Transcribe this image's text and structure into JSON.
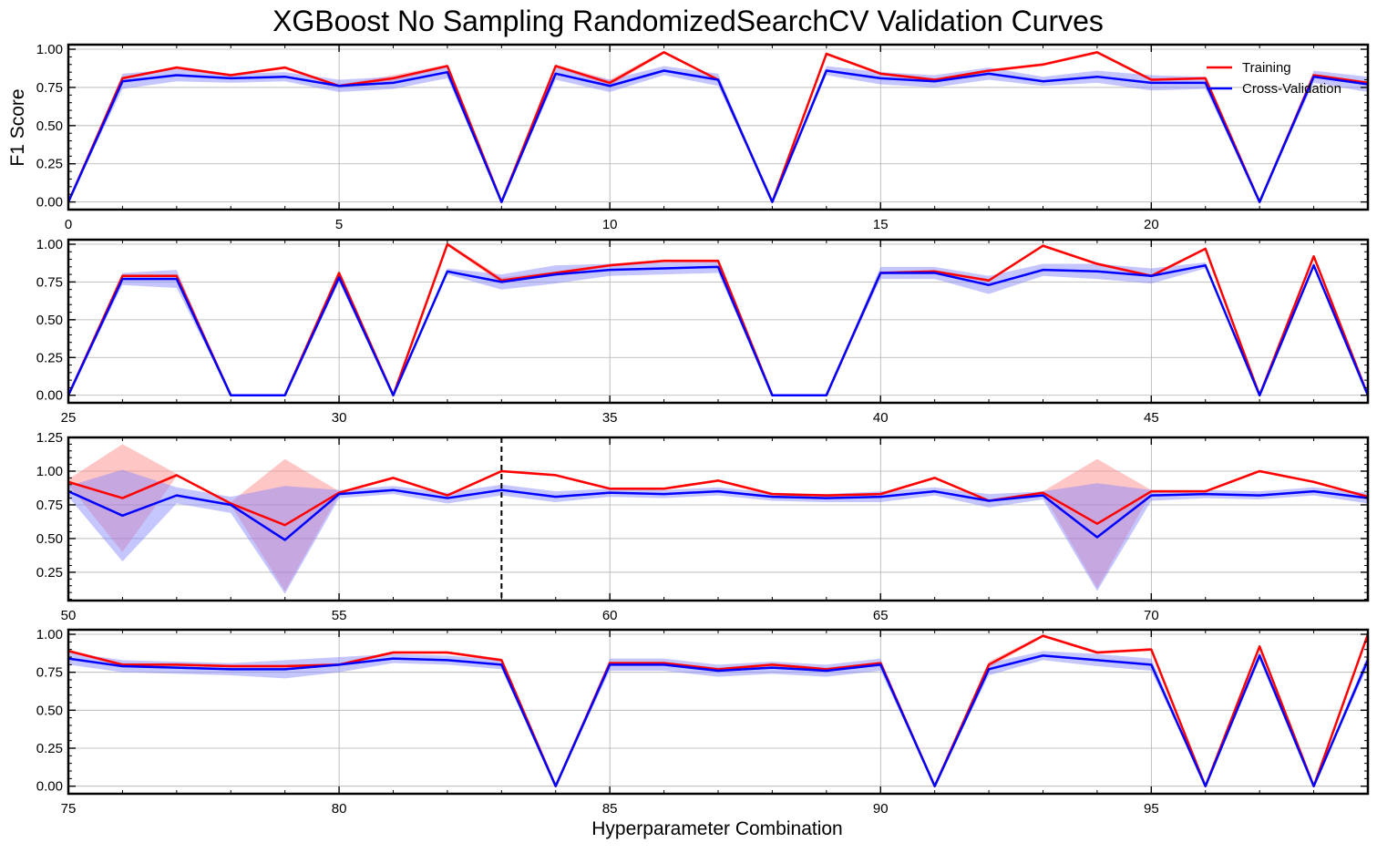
{
  "chart_data": {
    "type": "line",
    "title": "XGBoost No Sampling RandomizedSearchCV Validation Curves",
    "ylabel": "F1 Score",
    "xlabel": "Hyperparameter Combination",
    "grid": true,
    "legend": {
      "placement": "top-right",
      "entries": [
        "Training",
        "Cross-Validation"
      ]
    },
    "colors": {
      "training": "#ff0000",
      "cross_validation": "#0000ff",
      "training_band": "#ff8080",
      "cv_band": "#8080ff"
    },
    "best_marker": {
      "x": 58,
      "style": "dashed",
      "color": "#000000"
    },
    "panels": [
      {
        "xlim": [
          0,
          24
        ],
        "ylim": [
          -0.05,
          1.03
        ],
        "xticks": [
          "0",
          "5",
          "10",
          "15",
          "20"
        ],
        "xtick_values": [
          0,
          5,
          10,
          15,
          20
        ],
        "yticks": [
          "0.00",
          "0.25",
          "0.50",
          "0.75",
          "1.00"
        ],
        "ytick_values": [
          0,
          0.25,
          0.5,
          0.75,
          1.0
        ]
      },
      {
        "xlim": [
          25,
          49
        ],
        "ylim": [
          -0.05,
          1.03
        ],
        "xticks": [
          "25",
          "30",
          "35",
          "40",
          "45"
        ],
        "xtick_values": [
          25,
          30,
          35,
          40,
          45
        ],
        "yticks": [
          "0.00",
          "0.25",
          "0.50",
          "0.75",
          "1.00"
        ],
        "ytick_values": [
          0,
          0.25,
          0.5,
          0.75,
          1.0
        ]
      },
      {
        "xlim": [
          50,
          74
        ],
        "ylim": [
          0.04,
          1.25
        ],
        "xticks": [
          "50",
          "55",
          "60",
          "65",
          "70"
        ],
        "xtick_values": [
          50,
          55,
          60,
          65,
          70
        ],
        "yticks": [
          "0.25",
          "0.50",
          "0.75",
          "1.00",
          "1.25"
        ],
        "ytick_values": [
          0.25,
          0.5,
          0.75,
          1.0,
          1.25
        ]
      },
      {
        "xlim": [
          75,
          99
        ],
        "ylim": [
          -0.05,
          1.03
        ],
        "xticks": [
          "75",
          "80",
          "85",
          "90",
          "95"
        ],
        "xtick_values": [
          75,
          80,
          85,
          90,
          95
        ],
        "yticks": [
          "0.00",
          "0.25",
          "0.50",
          "0.75",
          "1.00"
        ],
        "ytick_values": [
          0,
          0.25,
          0.5,
          0.75,
          1.0
        ]
      }
    ],
    "series": [
      {
        "name": "Training",
        "values": [
          0.0,
          0.81,
          0.88,
          0.83,
          0.88,
          0.76,
          0.81,
          0.89,
          0.0,
          0.89,
          0.78,
          0.98,
          0.8,
          0.0,
          0.97,
          0.84,
          0.8,
          0.86,
          0.9,
          0.98,
          0.8,
          0.81,
          0.0,
          0.83,
          0.78,
          0.0,
          0.79,
          0.79,
          0.0,
          0.0,
          0.81,
          0.0,
          1.0,
          0.76,
          0.81,
          0.86,
          0.89,
          0.89,
          0.0,
          0.0,
          0.81,
          0.82,
          0.76,
          0.99,
          0.87,
          0.79,
          0.97,
          0.0,
          0.92,
          0.0,
          0.92,
          0.8,
          0.97,
          0.76,
          0.6,
          0.84,
          0.95,
          0.82,
          1.0,
          0.97,
          0.87,
          0.87,
          0.93,
          0.83,
          0.82,
          0.83,
          0.95,
          0.78,
          0.84,
          0.61,
          0.85,
          0.85,
          1.0,
          0.92,
          0.81,
          0.89,
          0.8,
          0.8,
          0.79,
          0.79,
          0.8,
          0.88,
          0.88,
          0.83,
          0.0,
          0.81,
          0.81,
          0.77,
          0.8,
          0.77,
          0.81,
          0.0,
          0.8,
          0.99,
          0.88,
          0.9,
          0.0,
          0.92,
          0.0,
          1.0
        ],
        "spread": [
          0,
          0.01,
          0.01,
          0.01,
          0.01,
          0.01,
          0.02,
          0.01,
          0,
          0.01,
          0.02,
          0.01,
          0.01,
          0,
          0.01,
          0.01,
          0.01,
          0.01,
          0.01,
          0.01,
          0.01,
          0.01,
          0,
          0.01,
          0.01,
          0,
          0.01,
          0.01,
          0,
          0,
          0.01,
          0,
          0.01,
          0.02,
          0.01,
          0.01,
          0.01,
          0.01,
          0,
          0,
          0.01,
          0.01,
          0.01,
          0.01,
          0.01,
          0.01,
          0.01,
          0,
          0.01,
          0,
          0.02,
          0.4,
          0.01,
          0.01,
          0.49,
          0.01,
          0.01,
          0.01,
          0.01,
          0.01,
          0.01,
          0.01,
          0.01,
          0.01,
          0.01,
          0.01,
          0.01,
          0.01,
          0.01,
          0.48,
          0.01,
          0.01,
          0.01,
          0.01,
          0.01,
          0.01,
          0.01,
          0.01,
          0.01,
          0.01,
          0.01,
          0.01,
          0.01,
          0.01,
          0,
          0.01,
          0.01,
          0.01,
          0.01,
          0.01,
          0.01,
          0,
          0.02,
          0.01,
          0.01,
          0.01,
          0,
          0.01,
          0,
          0.01
        ]
      },
      {
        "name": "Cross-Validation",
        "values": [
          0.0,
          0.79,
          0.83,
          0.81,
          0.82,
          0.76,
          0.78,
          0.85,
          0.0,
          0.84,
          0.76,
          0.86,
          0.8,
          0.0,
          0.86,
          0.81,
          0.79,
          0.84,
          0.79,
          0.82,
          0.78,
          0.78,
          0.0,
          0.82,
          0.77,
          0.0,
          0.77,
          0.77,
          0.0,
          0.0,
          0.78,
          0.0,
          0.82,
          0.75,
          0.8,
          0.83,
          0.84,
          0.85,
          0.0,
          0.0,
          0.81,
          0.81,
          0.73,
          0.83,
          0.82,
          0.79,
          0.86,
          0.0,
          0.86,
          0.0,
          0.85,
          0.67,
          0.82,
          0.75,
          0.49,
          0.83,
          0.86,
          0.8,
          0.86,
          0.81,
          0.84,
          0.83,
          0.85,
          0.81,
          0.8,
          0.81,
          0.85,
          0.78,
          0.82,
          0.51,
          0.82,
          0.83,
          0.82,
          0.85,
          0.8,
          0.84,
          0.79,
          0.78,
          0.77,
          0.77,
          0.8,
          0.84,
          0.83,
          0.8,
          0.0,
          0.8,
          0.8,
          0.76,
          0.78,
          0.76,
          0.8,
          0.0,
          0.77,
          0.86,
          0.83,
          0.8,
          0.0,
          0.86,
          0.0,
          0.83
        ],
        "spread": [
          0,
          0.05,
          0.04,
          0.03,
          0.03,
          0.04,
          0.04,
          0.04,
          0,
          0.04,
          0.04,
          0.03,
          0.04,
          0,
          0.03,
          0.04,
          0.04,
          0.04,
          0.03,
          0.04,
          0.05,
          0.04,
          0,
          0.04,
          0.05,
          0,
          0.04,
          0.06,
          0,
          0,
          0.03,
          0,
          0.02,
          0.05,
          0.06,
          0.04,
          0.04,
          0.04,
          0,
          0,
          0.04,
          0.04,
          0.06,
          0.04,
          0.05,
          0.05,
          0.02,
          0,
          0.02,
          0,
          0.04,
          0.34,
          0.06,
          0.06,
          0.4,
          0.03,
          0.03,
          0.04,
          0.04,
          0.04,
          0.03,
          0.03,
          0.03,
          0.03,
          0.03,
          0.04,
          0.03,
          0.05,
          0.03,
          0.4,
          0.04,
          0.03,
          0.03,
          0.03,
          0.04,
          0.04,
          0.04,
          0.04,
          0.04,
          0.06,
          0.05,
          0.03,
          0.03,
          0.03,
          0,
          0.04,
          0.04,
          0.04,
          0.04,
          0.04,
          0.04,
          0,
          0.04,
          0.03,
          0.04,
          0.04,
          0,
          0.03,
          0,
          0.04
        ]
      }
    ]
  }
}
